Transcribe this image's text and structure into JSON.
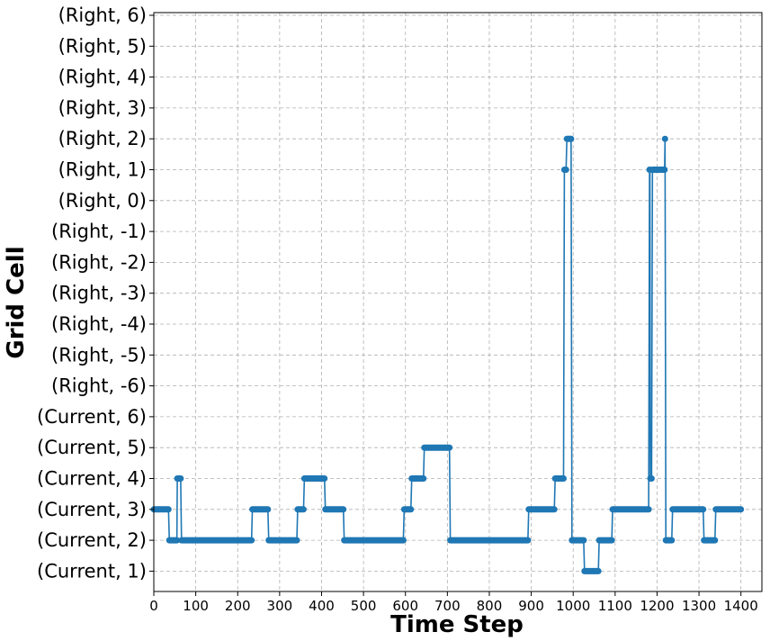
{
  "chart_data": {
    "type": "line",
    "title": "",
    "xlabel": "Time Step",
    "ylabel": "Grid Cell",
    "xlim": [
      0,
      1450
    ],
    "x_ticks": [
      0,
      100,
      200,
      300,
      400,
      500,
      600,
      700,
      800,
      900,
      1000,
      1100,
      1200,
      1300,
      1400
    ],
    "y_categories": [
      "(Current, 1)",
      "(Current, 2)",
      "(Current, 3)",
      "(Current, 4)",
      "(Current, 5)",
      "(Current, 6)",
      "(Right, -6)",
      "(Right, -5)",
      "(Right, -4)",
      "(Right, -3)",
      "(Right, -2)",
      "(Right, -1)",
      "(Right, 0)",
      "(Right, 1)",
      "(Right, 2)",
      "(Right, 3)",
      "(Right, 4)",
      "(Right, 5)",
      "(Right, 6)"
    ],
    "grid": true,
    "series": [
      {
        "name": "grid cell",
        "color": "#1f77b4",
        "marker": "circle",
        "segments": [
          {
            "x_start": 0,
            "x_end": 35,
            "cell": "(Current, 3)"
          },
          {
            "x_start": 37,
            "x_end": 55,
            "cell": "(Current, 2)"
          },
          {
            "x_start": 56,
            "x_end": 64,
            "cell": "(Current, 4)"
          },
          {
            "x_start": 66,
            "x_end": 233,
            "cell": "(Current, 2)"
          },
          {
            "x_start": 235,
            "x_end": 272,
            "cell": "(Current, 3)"
          },
          {
            "x_start": 274,
            "x_end": 341,
            "cell": "(Current, 2)"
          },
          {
            "x_start": 343,
            "x_end": 357,
            "cell": "(Current, 3)"
          },
          {
            "x_start": 359,
            "x_end": 407,
            "cell": "(Current, 4)"
          },
          {
            "x_start": 409,
            "x_end": 452,
            "cell": "(Current, 3)"
          },
          {
            "x_start": 454,
            "x_end": 595,
            "cell": "(Current, 2)"
          },
          {
            "x_start": 597,
            "x_end": 613,
            "cell": "(Current, 3)"
          },
          {
            "x_start": 615,
            "x_end": 643,
            "cell": "(Current, 4)"
          },
          {
            "x_start": 645,
            "x_end": 705,
            "cell": "(Current, 5)"
          },
          {
            "x_start": 707,
            "x_end": 892,
            "cell": "(Current, 2)"
          },
          {
            "x_start": 894,
            "x_end": 955,
            "cell": "(Current, 3)"
          },
          {
            "x_start": 957,
            "x_end": 977,
            "cell": "(Current, 4)"
          },
          {
            "x_start": 979,
            "x_end": 983,
            "cell": "(Right, 1)"
          },
          {
            "x_start": 985,
            "x_end": 995,
            "cell": "(Right, 2)"
          },
          {
            "x_start": 997,
            "x_end": 1025,
            "cell": "(Current, 2)"
          },
          {
            "x_start": 1027,
            "x_end": 1060,
            "cell": "(Current, 1)"
          },
          {
            "x_start": 1062,
            "x_end": 1092,
            "cell": "(Current, 2)"
          },
          {
            "x_start": 1094,
            "x_end": 1180,
            "cell": "(Current, 3)"
          },
          {
            "x_start": 1182,
            "x_end": 1183,
            "cell": "(Right, 1)"
          },
          {
            "x_start": 1184,
            "x_end": 1187,
            "cell": "(Current, 4)"
          },
          {
            "x_start": 1189,
            "x_end": 1218,
            "cell": "(Right, 1)"
          },
          {
            "x_start": 1219,
            "x_end": 1219,
            "cell": "(Right, 2)"
          },
          {
            "x_start": 1221,
            "x_end": 1235,
            "cell": "(Current, 2)"
          },
          {
            "x_start": 1237,
            "x_end": 1310,
            "cell": "(Current, 3)"
          },
          {
            "x_start": 1312,
            "x_end": 1338,
            "cell": "(Current, 2)"
          },
          {
            "x_start": 1340,
            "x_end": 1400,
            "cell": "(Current, 3)"
          }
        ]
      }
    ]
  }
}
